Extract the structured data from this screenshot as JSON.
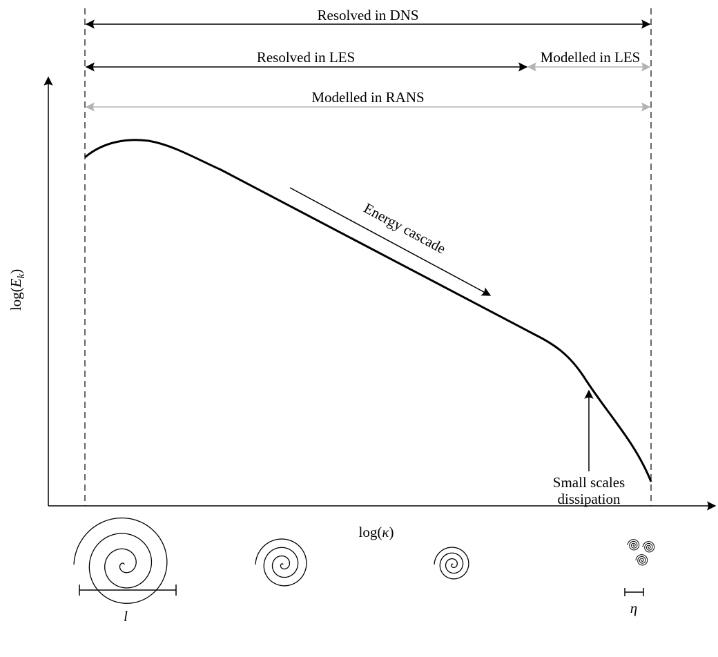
{
  "ranges": [
    {
      "label": "Resolved in DNS"
    },
    {
      "label": "Resolved in LES"
    },
    {
      "label": "Modelled in LES"
    },
    {
      "label": "Modelled in RANS"
    }
  ],
  "axes": {
    "y_label": {
      "prefix": "log(",
      "symbol": "E",
      "subscript": "k",
      "suffix": ")"
    },
    "x_label": {
      "prefix": "log(",
      "symbol": "κ",
      "suffix": ")"
    }
  },
  "annotations": {
    "cascade": "Energy cascade",
    "dissipation": [
      "Small scales",
      "dissipation"
    ]
  },
  "scales": {
    "large": "l",
    "small": "η"
  }
}
